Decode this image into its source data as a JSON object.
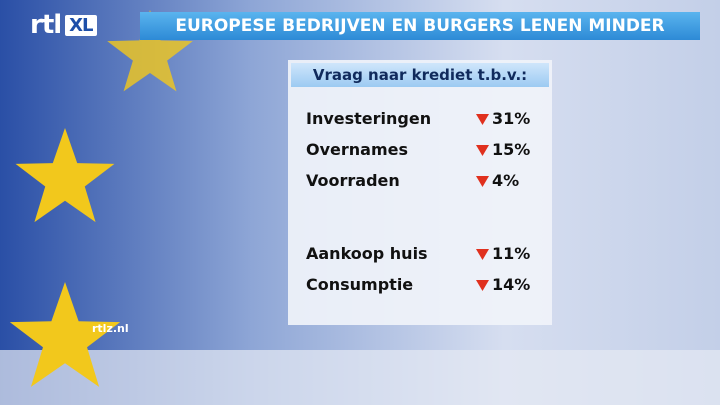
{
  "logo": {
    "left": "rtl",
    "right": "XL"
  },
  "title": "EUROPESE BEDRIJVEN EN BURGERS LENEN MINDER",
  "panel": {
    "header": "Vraag naar krediet t.b.v.:",
    "groups": [
      [
        {
          "label": "Investeringen",
          "value": "31%"
        },
        {
          "label": "Overnames",
          "value": "15%"
        },
        {
          "label": "Voorraden",
          "value": "4%"
        }
      ],
      [
        {
          "label": "Aankoop huis",
          "value": "11%"
        },
        {
          "label": "Consumptie",
          "value": "14%"
        }
      ]
    ]
  },
  "watermark": "rtlz.nl"
}
